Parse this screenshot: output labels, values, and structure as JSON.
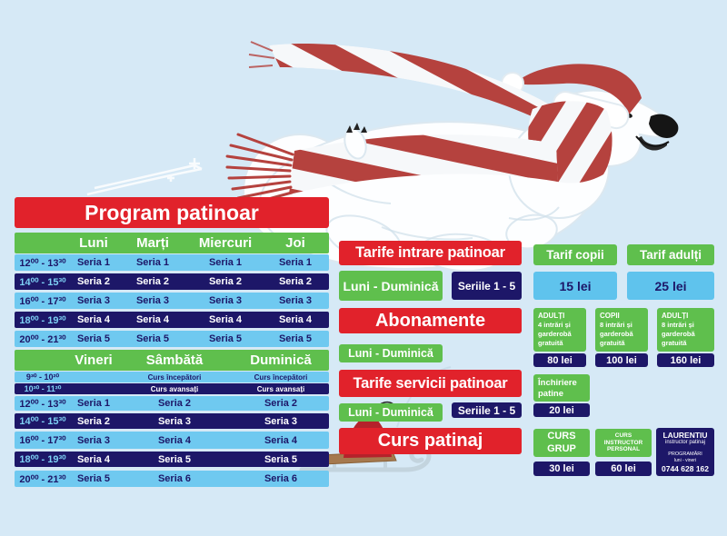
{
  "colors": {
    "red": "#e1222b",
    "green": "#5fbf4d",
    "navy": "#1d1768",
    "light_blue": "#6fc9f0",
    "price_blue": "#5fc3ed",
    "background": "#d6e9f6",
    "scarf_red": "#b5423e"
  },
  "program": {
    "title": "Program patinoar",
    "week1": {
      "days": [
        "Luni",
        "Marți",
        "Miercuri",
        "Joi"
      ],
      "rows": [
        {
          "time": "12⁰⁰ - 13³⁰",
          "cells": [
            "Seria 1",
            "Seria 1",
            "Seria 1",
            "Seria 1"
          ],
          "variant": "light"
        },
        {
          "time": "14⁰⁰ - 15³⁰",
          "cells": [
            "Seria 2",
            "Seria 2",
            "Seria 2",
            "Seria 2"
          ],
          "variant": "dark"
        },
        {
          "time": "16⁰⁰ - 17³⁰",
          "cells": [
            "Seria 3",
            "Seria 3",
            "Seria 3",
            "Seria 3"
          ],
          "variant": "light"
        },
        {
          "time": "18⁰⁰ - 19³⁰",
          "cells": [
            "Seria 4",
            "Seria 4",
            "Seria 4",
            "Seria 4"
          ],
          "variant": "dark"
        },
        {
          "time": "20⁰⁰ - 21³⁰",
          "cells": [
            "Seria 5",
            "Seria 5",
            "Seria 5",
            "Seria 5"
          ],
          "variant": "light"
        }
      ]
    },
    "week2": {
      "days": [
        "Vineri",
        "Sâmbătă",
        "Duminică"
      ],
      "rows": [
        {
          "time": "9³⁰ - 10²⁰",
          "cells": [
            "",
            "Curs începători",
            "Curs începători"
          ],
          "variant": "light",
          "small": true
        },
        {
          "time": "10³⁰ - 11²⁰",
          "cells": [
            "",
            "Curs avansați",
            "Curs avansați"
          ],
          "variant": "dark",
          "small": true
        },
        {
          "time": "12⁰⁰ - 13³⁰",
          "cells": [
            "Seria 1",
            "Seria 2",
            "Seria 2"
          ],
          "variant": "light"
        },
        {
          "time": "14⁰⁰ - 15³⁰",
          "cells": [
            "Seria 2",
            "Seria 3",
            "Seria 3"
          ],
          "variant": "dark"
        },
        {
          "time": "16⁰⁰ - 17³⁰",
          "cells": [
            "Seria 3",
            "Seria 4",
            "Seria 4"
          ],
          "variant": "light"
        },
        {
          "time": "18⁰⁰ - 19³⁰",
          "cells": [
            "Seria 4",
            "Seria 5",
            "Seria 5"
          ],
          "variant": "dark"
        },
        {
          "time": "20⁰⁰ - 21³⁰",
          "cells": [
            "Seria 5",
            "Seria 6",
            "Seria 6"
          ],
          "variant": "light"
        }
      ]
    }
  },
  "sections": {
    "intrare": {
      "title": "Tarife intrare patinoar",
      "days": "Luni - Duminică",
      "series": "Seriile 1 - 5"
    },
    "abonamente": {
      "title": "Abonamente",
      "days": "Luni - Duminică"
    },
    "servicii": {
      "title": "Tarife servicii patinoar",
      "days": "Luni - Duminică",
      "series": "Seriile 1 - 5"
    },
    "curs": {
      "title": "Curs patinaj"
    }
  },
  "tarife": {
    "copii": {
      "label": "Tarif copii",
      "price": "15 lei"
    },
    "adulti": {
      "label": "Tarif adulți",
      "price": "25 lei"
    }
  },
  "abonamente_cards": [
    {
      "lines": [
        "ADULȚI",
        "4 intrări și",
        "garderobă",
        "gratuită"
      ],
      "price": "80 lei"
    },
    {
      "lines": [
        "COPII",
        "8 intrări și",
        "garderobă",
        "gratuită"
      ],
      "price": "100 lei"
    },
    {
      "lines": [
        "ADULȚI",
        "8 intrări și",
        "garderobă",
        "gratuită"
      ],
      "price": "160 lei"
    }
  ],
  "servicii_card": {
    "lines": [
      "Închiriere",
      "patine"
    ],
    "price": "20 lei"
  },
  "curs_cards": [
    {
      "lines": [
        "CURS",
        "GRUP"
      ],
      "price": "30 lei"
    },
    {
      "lines": [
        "CURS INSTRUCTOR",
        "PERSONAL"
      ],
      "price": "60 lei"
    }
  ],
  "instructor": {
    "name": "LAURENTIU",
    "role": "instructor patinaj",
    "booking": "PROGRAMĂRI",
    "hours": "luni - vineri",
    "phone": "0744 628 162"
  }
}
